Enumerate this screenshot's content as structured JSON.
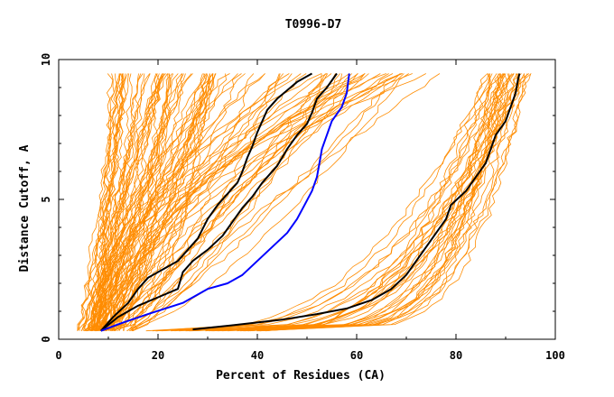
{
  "chart_data": {
    "type": "line",
    "title": "T0996-D7",
    "xlabel": "Percent of Residues (CA)",
    "ylabel": "Distance Cutoff, A",
    "xlim": [
      0,
      100
    ],
    "ylim": [
      0,
      10
    ],
    "x_ticks": [
      "0",
      "20",
      "40",
      "60",
      "80",
      "100"
    ],
    "y_ticks": [
      "0",
      "5",
      "10"
    ],
    "grid": false,
    "legend": "none",
    "colors": {
      "background_models": "#ff8c00",
      "highlight_black": "#000000",
      "highlight_blue": "#0000ff"
    },
    "highlighted_series": [
      {
        "color": "#000000",
        "points": [
          [
            8.5,
            0.3
          ],
          [
            12,
            0.8
          ],
          [
            16,
            1.2
          ],
          [
            20,
            1.5
          ],
          [
            24,
            1.8
          ],
          [
            25,
            2.4
          ],
          [
            27,
            2.8
          ],
          [
            30,
            3.2
          ],
          [
            33,
            3.7
          ],
          [
            35,
            4.2
          ],
          [
            37,
            4.7
          ],
          [
            39,
            5.1
          ],
          [
            41,
            5.6
          ],
          [
            44,
            6.2
          ],
          [
            46,
            6.8
          ],
          [
            48,
            7.3
          ],
          [
            50,
            7.7
          ],
          [
            51,
            8.1
          ],
          [
            52,
            8.6
          ],
          [
            54,
            9.0
          ],
          [
            56,
            9.5
          ]
        ]
      },
      {
        "color": "#000000",
        "points": [
          [
            8.5,
            0.3
          ],
          [
            11,
            0.8
          ],
          [
            14,
            1.3
          ],
          [
            16,
            1.8
          ],
          [
            18,
            2.2
          ],
          [
            21,
            2.5
          ],
          [
            24,
            2.8
          ],
          [
            26,
            3.2
          ],
          [
            28,
            3.6
          ],
          [
            30,
            4.3
          ],
          [
            32,
            4.8
          ],
          [
            34,
            5.2
          ],
          [
            36,
            5.6
          ],
          [
            37,
            6.0
          ],
          [
            38,
            6.5
          ],
          [
            39,
            6.9
          ],
          [
            40,
            7.4
          ],
          [
            41,
            7.8
          ],
          [
            42,
            8.2
          ],
          [
            44,
            8.6
          ],
          [
            46,
            8.9
          ],
          [
            48,
            9.2
          ],
          [
            51,
            9.5
          ]
        ]
      },
      {
        "color": "#0000ff",
        "points": [
          [
            8.5,
            0.3
          ],
          [
            13,
            0.6
          ],
          [
            18,
            0.9
          ],
          [
            25,
            1.3
          ],
          [
            30,
            1.8
          ],
          [
            34,
            2.0
          ],
          [
            37,
            2.3
          ],
          [
            40,
            2.8
          ],
          [
            43,
            3.3
          ],
          [
            46,
            3.8
          ],
          [
            48,
            4.3
          ],
          [
            49.5,
            4.8
          ],
          [
            51,
            5.3
          ],
          [
            52,
            5.8
          ],
          [
            52.5,
            6.3
          ],
          [
            53,
            6.8
          ],
          [
            54,
            7.3
          ],
          [
            55,
            7.8
          ],
          [
            57,
            8.3
          ],
          [
            58,
            8.8
          ],
          [
            58.5,
            9.5
          ]
        ]
      },
      {
        "color": "#000000",
        "points": [
          [
            27,
            0.35
          ],
          [
            35,
            0.5
          ],
          [
            45,
            0.7
          ],
          [
            52,
            0.9
          ],
          [
            58,
            1.1
          ],
          [
            63,
            1.4
          ],
          [
            67,
            1.8
          ],
          [
            70,
            2.3
          ],
          [
            72,
            2.8
          ],
          [
            74,
            3.3
          ],
          [
            76,
            3.8
          ],
          [
            78,
            4.3
          ],
          [
            79,
            4.8
          ],
          [
            82,
            5.3
          ],
          [
            84,
            5.8
          ],
          [
            86,
            6.3
          ],
          [
            87,
            6.8
          ],
          [
            88,
            7.3
          ],
          [
            90,
            7.8
          ],
          [
            91,
            8.3
          ],
          [
            92,
            8.8
          ],
          [
            92.5,
            9.3
          ],
          [
            92.8,
            9.5
          ]
        ]
      }
    ]
  }
}
